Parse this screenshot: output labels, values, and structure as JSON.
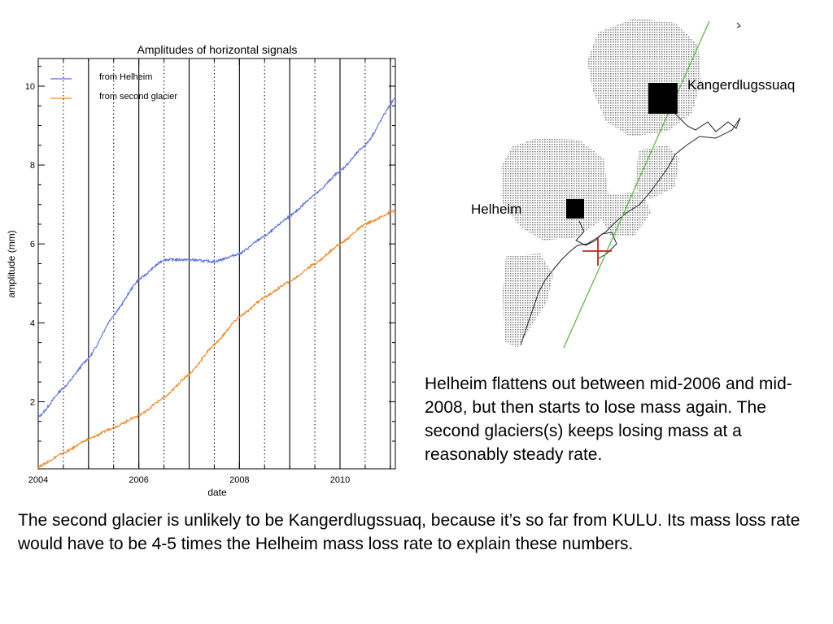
{
  "chart_data": {
    "type": "line",
    "title": "Amplitudes of horizontal signals",
    "xlabel": "date",
    "ylabel": "amplitude (mm)",
    "xlim": [
      2004,
      2011.1
    ],
    "ylim": [
      0.3,
      10.7
    ],
    "x_ticks": [
      2004,
      2006,
      2008,
      2010
    ],
    "y_ticks": [
      2,
      4,
      6,
      8,
      10
    ],
    "year_lines_solid": [
      2005,
      2006,
      2007,
      2008,
      2009,
      2010,
      2011
    ],
    "half_year_lines_dotted": [
      2004.5,
      2005.5,
      2006.5,
      2007.5,
      2008.5,
      2009.5,
      2010.5
    ],
    "grid": false,
    "legend_position": "top-left",
    "series": [
      {
        "name": "from Helheim",
        "color": "#5b6ee8",
        "x": [
          2004.0,
          2004.5,
          2005.0,
          2005.5,
          2006.0,
          2006.5,
          2007.0,
          2007.5,
          2008.0,
          2008.5,
          2009.0,
          2009.5,
          2010.0,
          2010.5,
          2011.1
        ],
        "y": [
          1.6,
          2.35,
          3.1,
          4.2,
          5.1,
          5.6,
          5.6,
          5.55,
          5.75,
          6.2,
          6.7,
          7.25,
          7.85,
          8.5,
          9.7
        ]
      },
      {
        "name": "from second glacier",
        "color": "#f08a24",
        "x": [
          2004.0,
          2004.5,
          2005.0,
          2005.5,
          2006.0,
          2006.5,
          2007.0,
          2007.5,
          2008.0,
          2008.5,
          2009.0,
          2009.5,
          2010.0,
          2010.5,
          2011.1
        ],
        "y": [
          0.35,
          0.7,
          1.05,
          1.35,
          1.65,
          2.1,
          2.7,
          3.45,
          4.15,
          4.65,
          5.05,
          5.5,
          6.0,
          6.5,
          6.85
        ]
      }
    ]
  },
  "map": {
    "labels": {
      "kangerdlugssuaq": "Kangerdlugssuaq",
      "helheim": "Helheim"
    },
    "track_color": "#5fb84a",
    "marker_color": "#cc2020"
  },
  "text": {
    "caption_right": "Helheim flattens out between mid-2006 and mid-2008, but then starts to lose mass again.  The second glaciers(s) keeps losing mass at a reasonably steady rate.",
    "caption_bottom": "The second glacier is unlikely to be Kangerdlugssuaq, because it’s so far from KULU.  Its mass loss rate would have to be 4-5 times the Helheim mass loss rate to explain these numbers."
  }
}
